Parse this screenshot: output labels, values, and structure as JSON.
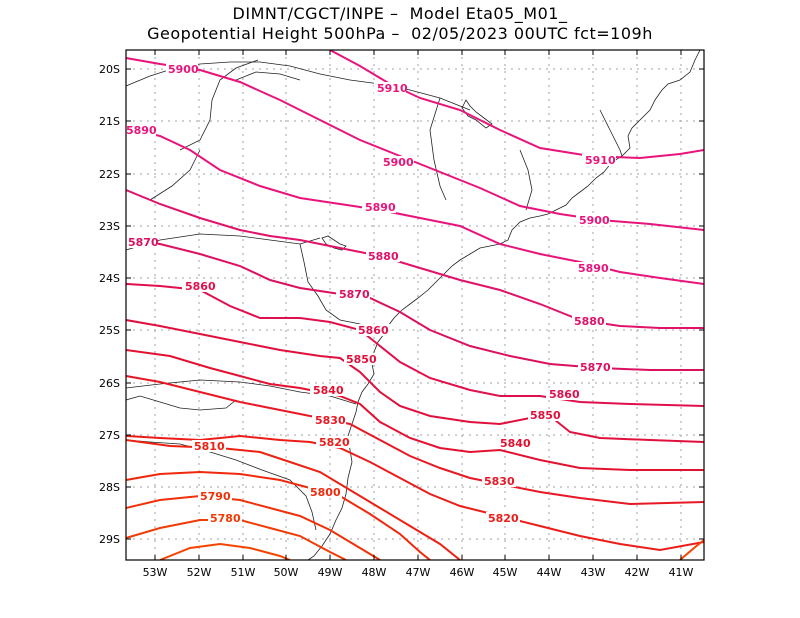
{
  "title": {
    "line1": "DIMNT/CGCT/INPE –  Model Eta05_M01_",
    "line2": "Geopotential Height 500hPa –  02/05/2023 00UTC fct=109h"
  },
  "axes": {
    "lat_labels": [
      "20S",
      "21S",
      "22S",
      "23S",
      "24S",
      "25S",
      "26S",
      "27S",
      "28S",
      "29S"
    ],
    "lon_labels": [
      "53W",
      "52W",
      "51W",
      "50W",
      "49W",
      "48W",
      "47W",
      "46W",
      "45W",
      "44W",
      "43W",
      "42W",
      "41W"
    ]
  },
  "contours": [
    {
      "value": "5910",
      "color": "#e8147c"
    },
    {
      "value": "5900",
      "color": "#e8147c"
    },
    {
      "value": "5890",
      "color": "#e8147c"
    },
    {
      "value": "5880",
      "color": "#e0126a"
    },
    {
      "value": "5870",
      "color": "#dc1060"
    },
    {
      "value": "5860",
      "color": "#e0104c"
    },
    {
      "value": "5850",
      "color": "#e0103c"
    },
    {
      "value": "5840",
      "color": "#e41030"
    },
    {
      "value": "5830",
      "color": "#e81824"
    },
    {
      "value": "5820",
      "color": "#ec1c18"
    },
    {
      "value": "5810",
      "color": "#ee2012"
    },
    {
      "value": "5800",
      "color": "#f0280c"
    },
    {
      "value": "5790",
      "color": "#f03008"
    },
    {
      "value": "5780",
      "color": "#f23a04"
    }
  ]
}
